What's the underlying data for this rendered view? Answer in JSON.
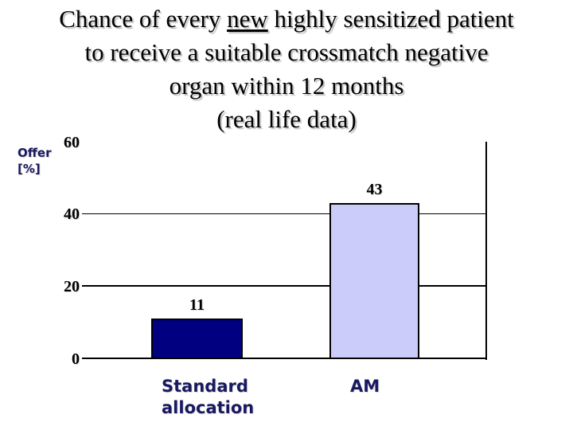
{
  "title": {
    "line1_pre": "Chance of every ",
    "line1_underlined": "new",
    "line1_post": " highly sensitized patient",
    "line2": "to receive a suitable crossmatch negative",
    "line3": "organ within 12 months",
    "line4": "(real life data)"
  },
  "chart_data": {
    "type": "bar",
    "categories": [
      "Standard allocation",
      "AM"
    ],
    "values": [
      11,
      43
    ],
    "data_labels": [
      "11",
      "43"
    ],
    "ylabel": "Offer [%]",
    "ylabel_lines": [
      "Offer",
      "[%]"
    ],
    "yticks": [
      0,
      20,
      40,
      60
    ],
    "ylim": [
      0,
      60
    ],
    "grid": "horizontal",
    "gridline_at_top_tick": false,
    "value_axis_position": "right",
    "legend": "none",
    "bar_colors": [
      "#000080",
      "#ccccfa"
    ],
    "bar_border_color": "#000000",
    "axis_color": "#000000",
    "category_label_color": "#191960",
    "ylabel_color": "#191960",
    "background_color": "#ffffff"
  }
}
